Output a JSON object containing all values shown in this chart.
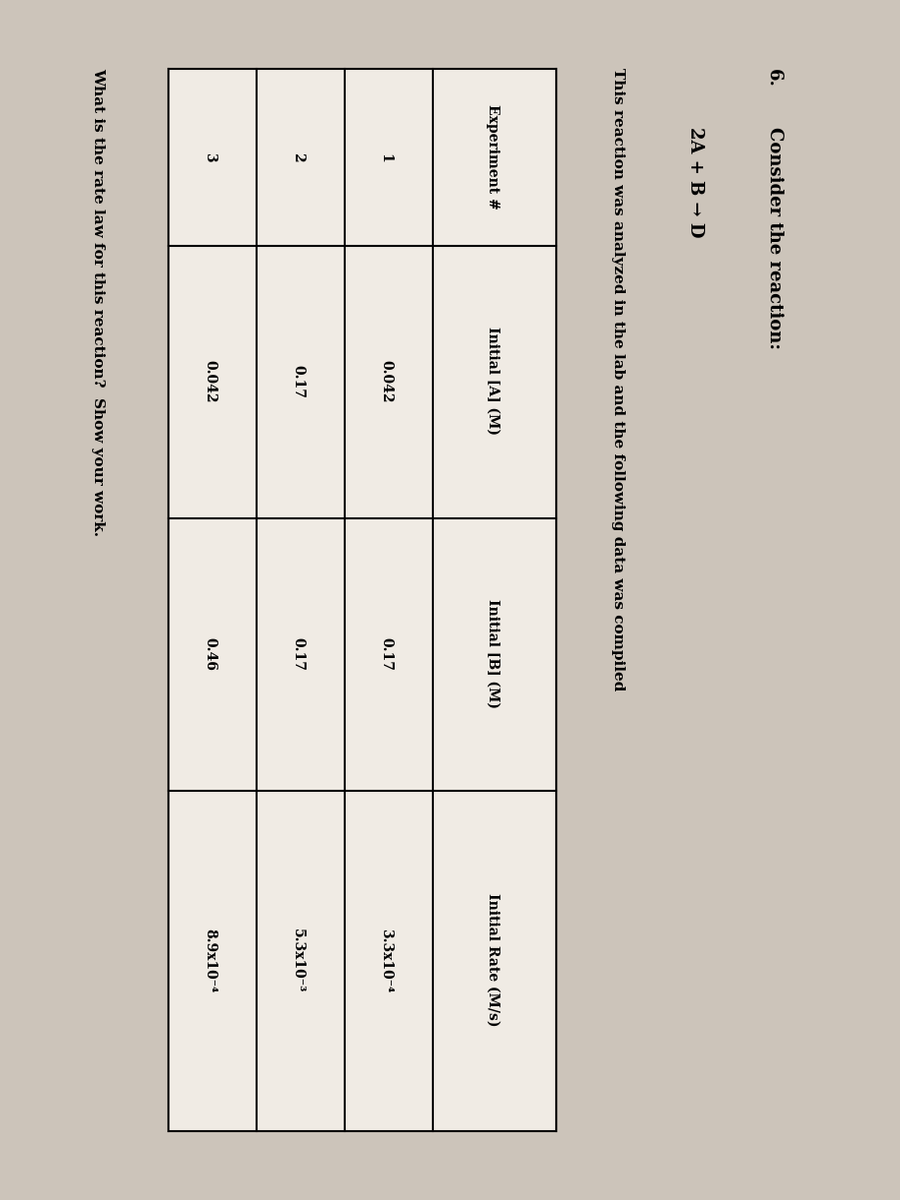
{
  "title_number": "6.",
  "title_text": "Consider the reaction:",
  "reaction": "2A + B → D",
  "subtitle": "This reaction was analyzed in the lab and the following data was compiled",
  "table_headers": [
    "Experiment #",
    "Initial [A] (M)",
    "Initial [B] (M)",
    "Initial Rate (M/s)"
  ],
  "table_rows": [
    [
      "1",
      "0.042",
      "0.17",
      "3.3x10⁻⁴"
    ],
    [
      "2",
      "0.17",
      "0.17",
      "5.3x10⁻³"
    ],
    [
      "3",
      "0.042",
      "0.46",
      "8.9x10⁻⁴"
    ]
  ],
  "question": "What is the rate law for this reaction?  Show your work.",
  "bg_color": "#ccc4ba",
  "text_color": "#000000",
  "table_bg": "#f0ebe4",
  "font_size_title": 13,
  "font_size_body": 11,
  "font_size_table": 10
}
